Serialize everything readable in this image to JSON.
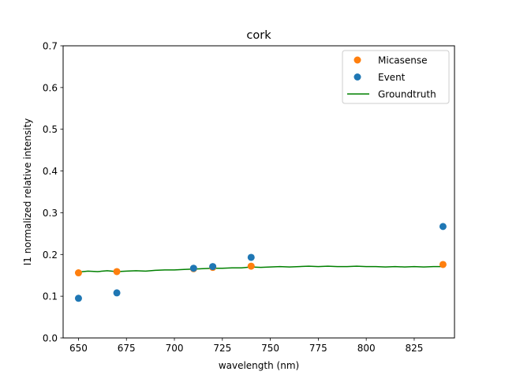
{
  "chart_data": {
    "type": "scatter",
    "title": "cork",
    "xlabel": "wavelength (nm)",
    "ylabel": "I1 normalized relative intensity",
    "xlim": [
      642,
      846
    ],
    "ylim": [
      0,
      0.7
    ],
    "xticks": [
      "650",
      "675",
      "700",
      "725",
      "750",
      "775",
      "800",
      "825"
    ],
    "xtick_values": [
      650,
      675,
      700,
      725,
      750,
      775,
      800,
      825
    ],
    "yticks": [
      "0.0",
      "0.1",
      "0.2",
      "0.3",
      "0.4",
      "0.5",
      "0.6",
      "0.7"
    ],
    "ytick_values": [
      0,
      0.1,
      0.2,
      0.3,
      0.4,
      0.5,
      0.6,
      0.7
    ],
    "grid": false,
    "legend_position": "top-right",
    "series": [
      {
        "name": "Micasense",
        "kind": "scatter",
        "color": "#ff7f0e",
        "x": [
          650,
          670,
          710,
          720,
          740,
          840
        ],
        "y": [
          0.156,
          0.159,
          0.166,
          0.169,
          0.172,
          0.176
        ]
      },
      {
        "name": "Event",
        "kind": "scatter",
        "color": "#1f77b4",
        "x": [
          650,
          670,
          710,
          720,
          740,
          840
        ],
        "y": [
          0.095,
          0.108,
          0.167,
          0.171,
          0.193,
          0.267
        ]
      },
      {
        "name": "Groundtruth",
        "kind": "line",
        "color": "#008000",
        "x": [
          650,
          655,
          660,
          665,
          670,
          675,
          680,
          685,
          690,
          695,
          700,
          705,
          710,
          715,
          720,
          725,
          730,
          735,
          740,
          745,
          750,
          755,
          760,
          765,
          770,
          775,
          780,
          785,
          790,
          795,
          800,
          805,
          810,
          815,
          820,
          825,
          830,
          835,
          840
        ],
        "y": [
          0.158,
          0.16,
          0.159,
          0.161,
          0.159,
          0.16,
          0.161,
          0.16,
          0.162,
          0.163,
          0.163,
          0.164,
          0.165,
          0.166,
          0.167,
          0.167,
          0.168,
          0.168,
          0.17,
          0.169,
          0.17,
          0.171,
          0.17,
          0.171,
          0.172,
          0.171,
          0.172,
          0.171,
          0.171,
          0.172,
          0.171,
          0.171,
          0.17,
          0.171,
          0.17,
          0.171,
          0.17,
          0.171,
          0.171
        ]
      }
    ]
  }
}
